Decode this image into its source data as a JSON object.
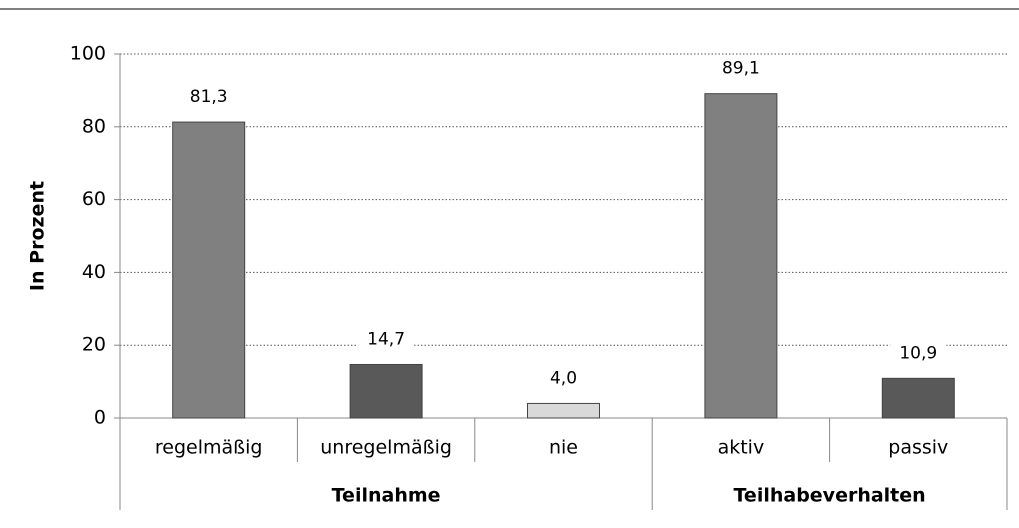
{
  "chart_data": {
    "type": "bar",
    "y_label": "In Prozent",
    "categories": [
      "regelmäßig",
      "unregelmäßig",
      "nie",
      "aktiv",
      "passiv"
    ],
    "values": [
      81.3,
      14.7,
      4.0,
      89.1,
      10.9
    ],
    "value_labels": [
      "81,3",
      "14,7",
      "4,0",
      "89,1",
      "10,9"
    ],
    "colors": [
      "#808080",
      "#595959",
      "#d9d9d9",
      "#808080",
      "#595959"
    ],
    "groups": [
      {
        "name": "Teilnahme",
        "size": 3
      },
      {
        "name": "Teilhabeverhalten",
        "size": 2
      }
    ],
    "ylim": [
      0,
      100
    ],
    "yticks": [
      0,
      20,
      40,
      60,
      80,
      100
    ],
    "grid": true
  }
}
